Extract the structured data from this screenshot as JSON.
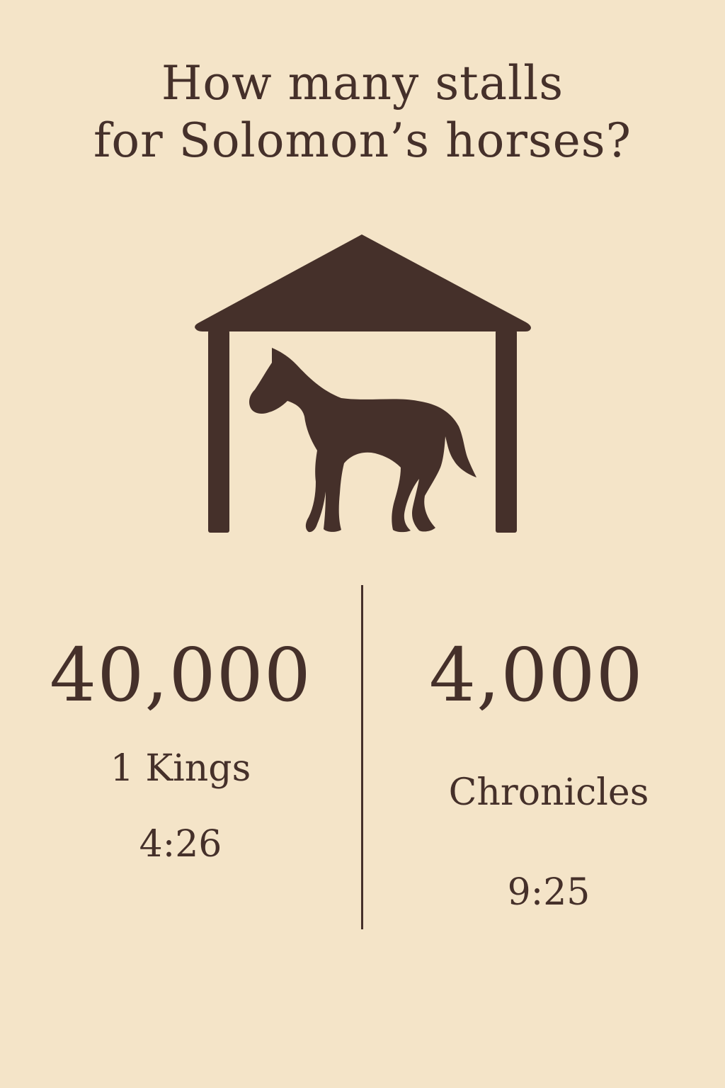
{
  "colors": {
    "background": "#f4e4c8",
    "ink": "#45302a"
  },
  "title": {
    "line1": "How many stalls",
    "line2": "for Solomon’s horses?"
  },
  "illustration": {
    "icon": "horse-stable-icon"
  },
  "comparison": {
    "left": {
      "figure": "40,000",
      "ref_line1": "1 Kings",
      "ref_line2": "4:26"
    },
    "right": {
      "figure": "4,000",
      "ref_line1": "Chronicles",
      "ref_line2": "9:25"
    }
  }
}
